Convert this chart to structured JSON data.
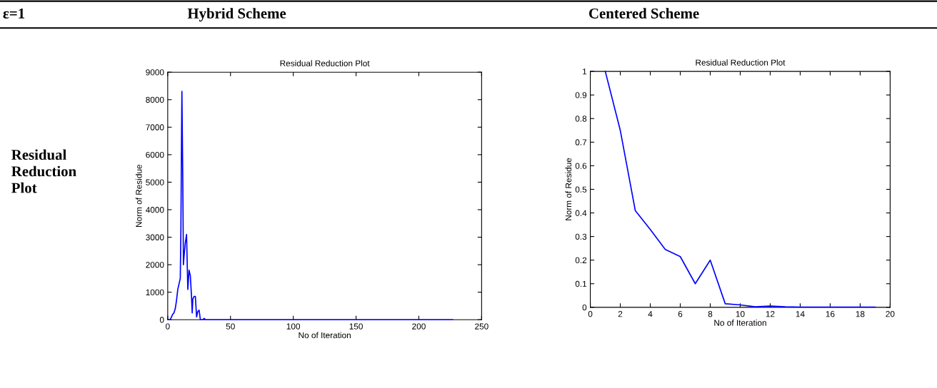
{
  "chart_data": [
    {
      "type": "line",
      "title": "Residual Reduction Plot",
      "xlabel": "No of Iteration",
      "ylabel": "Norm of Residue",
      "x": [
        0,
        2,
        3,
        4,
        5,
        6,
        7,
        8,
        9,
        10,
        10.5,
        11,
        11.3,
        12,
        12.5,
        13,
        14,
        15,
        16,
        17,
        18,
        19,
        19.5,
        20,
        21,
        22,
        23,
        24,
        25,
        26,
        28,
        29,
        30,
        227
      ],
      "series": [
        {
          "color": "#0000ff",
          "values": [
            0,
            0,
            100,
            200,
            250,
            400,
            700,
            1100,
            1300,
            1500,
            3300,
            6600,
            8300,
            5100,
            2000,
            2300,
            2800,
            3100,
            1100,
            1800,
            1600,
            800,
            250,
            750,
            850,
            850,
            100,
            300,
            350,
            0,
            0,
            50,
            0,
            0
          ]
        }
      ],
      "xlim": [
        0,
        250
      ],
      "xticks": [
        0,
        50,
        100,
        150,
        200,
        250
      ],
      "ylim": [
        0,
        9000
      ],
      "yticks": [
        0,
        1000,
        2000,
        3000,
        4000,
        5000,
        6000,
        7000,
        8000,
        9000
      ],
      "grid": false,
      "legend": false,
      "line_style": "solid",
      "marker": "none",
      "annotations": [
        "ε=1",
        "Hybrid Scheme",
        "Residual Reduction Plot"
      ]
    },
    {
      "type": "line",
      "title": "Residual Reduction Plot",
      "xlabel": "No of Iteration",
      "ylabel": "Norm of Residue",
      "x": [
        1,
        2,
        3,
        4,
        5,
        6,
        7,
        8,
        9,
        10,
        11,
        12,
        13,
        14,
        15,
        16,
        17,
        18,
        19
      ],
      "series": [
        {
          "color": "#0000ff",
          "values": [
            1.0,
            0.75,
            0.41,
            0.33,
            0.245,
            0.215,
            0.1,
            0.2,
            0.015,
            0.01,
            0.002,
            0.005,
            0.002,
            0.001,
            0.001,
            0.001,
            0.001,
            0.001,
            0.001
          ]
        }
      ],
      "xlim": [
        0,
        20
      ],
      "xticks": [
        0,
        2,
        4,
        6,
        8,
        10,
        12,
        14,
        16,
        18,
        20
      ],
      "ylim": [
        0,
        1
      ],
      "yticks": [
        0,
        0.1,
        0.2,
        0.3,
        0.4,
        0.5,
        0.6,
        0.7,
        0.8,
        0.9,
        1
      ],
      "grid": false,
      "legend": false,
      "line_style": "solid",
      "marker": "none",
      "annotations": [
        "Centered Scheme"
      ]
    }
  ]
}
